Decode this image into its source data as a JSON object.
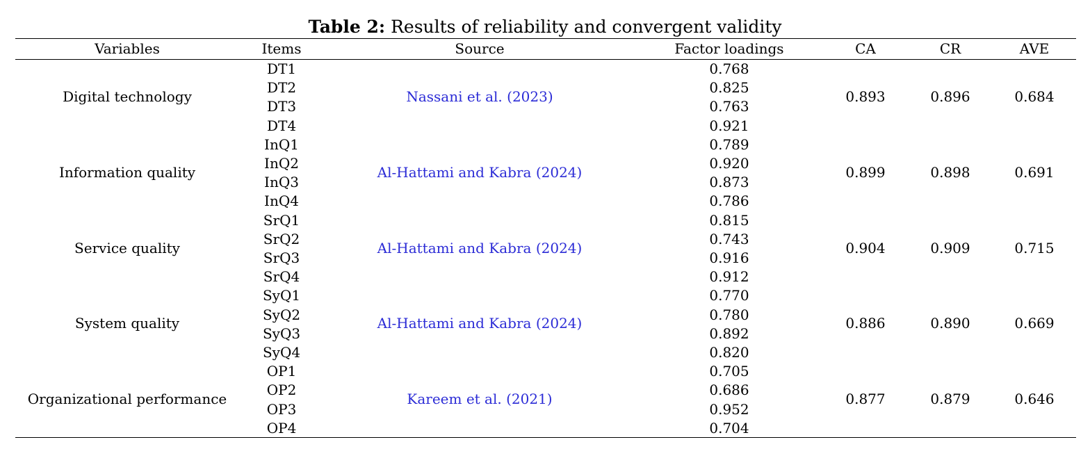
{
  "caption": {
    "label": "Table 2:",
    "text": " Results of reliability and convergent validity"
  },
  "headers": {
    "variables": "Variables",
    "items": "Items",
    "source": "Source",
    "loadings": "Factor loadings",
    "ca": "CA",
    "cr": "CR",
    "ave": "AVE"
  },
  "groups": [
    {
      "variable": "Digital technology",
      "source": "Nassani et al. (2023)",
      "items": [
        "DT1",
        "DT2",
        "DT3",
        "DT4"
      ],
      "loadings": [
        "0.768",
        "0.825",
        "0.763",
        "0.921"
      ],
      "ca": "0.893",
      "cr": "0.896",
      "ave": "0.684"
    },
    {
      "variable": "Information quality",
      "source": "Al-Hattami and Kabra (2024)",
      "items": [
        "InQ1",
        "InQ2",
        "InQ3",
        "InQ4"
      ],
      "loadings": [
        "0.789",
        "0.920",
        "0.873",
        "0.786"
      ],
      "ca": "0.899",
      "cr": "0.898",
      "ave": "0.691"
    },
    {
      "variable": "Service quality",
      "source": "Al-Hattami and Kabra (2024)",
      "items": [
        "SrQ1",
        "SrQ2",
        "SrQ3",
        "SrQ4"
      ],
      "loadings": [
        "0.815",
        "0.743",
        "0.916",
        "0.912"
      ],
      "ca": "0.904",
      "cr": "0.909",
      "ave": "0.715"
    },
    {
      "variable": "System quality",
      "source": "Al-Hattami and Kabra (2024)",
      "items": [
        "SyQ1",
        "SyQ2",
        "SyQ3",
        "SyQ4"
      ],
      "loadings": [
        "0.770",
        "0.780",
        "0.892",
        "0.820"
      ],
      "ca": "0.886",
      "cr": "0.890",
      "ave": "0.669"
    },
    {
      "variable": "Organizational performance",
      "source": "Kareem et al. (2021)",
      "items": [
        "OP1",
        "OP2",
        "OP3",
        "OP4"
      ],
      "loadings": [
        "0.705",
        "0.686",
        "0.952",
        "0.704"
      ],
      "ca": "0.877",
      "cr": "0.879",
      "ave": "0.646"
    }
  ],
  "colors": {
    "link": "#2b2bd6",
    "text": "#000000"
  }
}
